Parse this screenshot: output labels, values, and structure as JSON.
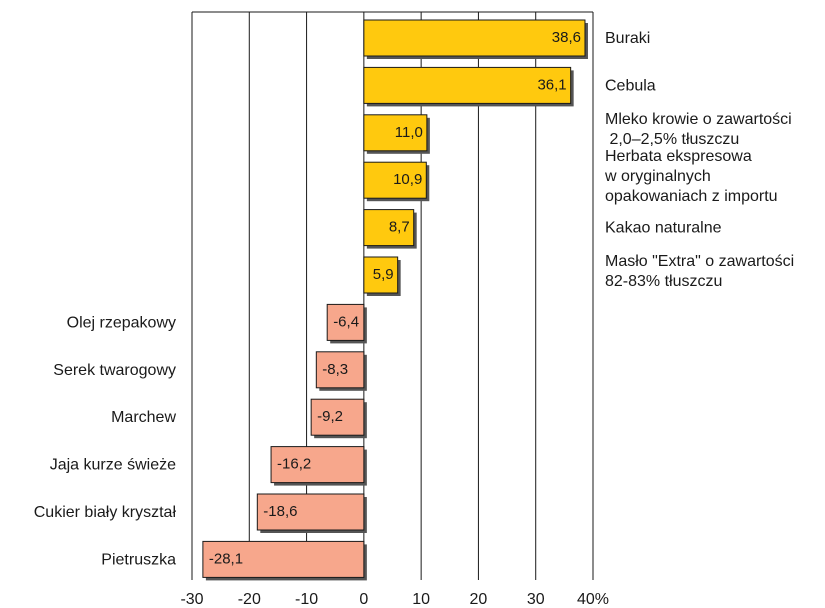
{
  "chart_data": {
    "type": "bar",
    "orientation": "horizontal",
    "xlim": [
      -30,
      40
    ],
    "x_ticks": [
      -30,
      -20,
      -10,
      0,
      10,
      20,
      30,
      40
    ],
    "x_tick_labels": [
      "-30",
      "-20",
      "-10",
      "0",
      "10",
      "20",
      "30",
      "40%"
    ],
    "grid": "vertical",
    "categories": [
      {
        "label_lines": [
          "Buraki"
        ],
        "value": 38.6,
        "value_label": "38,6"
      },
      {
        "label_lines": [
          "Cebula"
        ],
        "value": 36.1,
        "value_label": "36,1"
      },
      {
        "label_lines": [
          "Mleko krowie o zawartości",
          " 2,0–2,5% tłuszczu"
        ],
        "value": 11.0,
        "value_label": "11,0"
      },
      {
        "label_lines": [
          "Herbata ekspresowa",
          "w oryginalnych",
          "opakowaniach z importu"
        ],
        "value": 10.9,
        "value_label": "10,9"
      },
      {
        "label_lines": [
          "Kakao naturalne"
        ],
        "value": 8.7,
        "value_label": "8,7"
      },
      {
        "label_lines": [
          "Masło \"Extra\" o zawartości",
          "82-83% tłuszczu"
        ],
        "value": 5.9,
        "value_label": "5,9"
      },
      {
        "label_lines": [
          "Olej rzepakowy"
        ],
        "value": -6.4,
        "value_label": "-6,4"
      },
      {
        "label_lines": [
          "Serek twarogowy"
        ],
        "value": -8.3,
        "value_label": "-8,3"
      },
      {
        "label_lines": [
          "Marchew"
        ],
        "value": -9.2,
        "value_label": "-9,2"
      },
      {
        "label_lines": [
          "Jaja kurze świeże"
        ],
        "value": -16.2,
        "value_label": "-16,2"
      },
      {
        "label_lines": [
          "Cukier biały kryształ"
        ],
        "value": -18.6,
        "value_label": "-18,6"
      },
      {
        "label_lines": [
          "Pietruszka"
        ],
        "value": -28.1,
        "value_label": "-28,1"
      }
    ],
    "colors": {
      "positive": "#ffc90e",
      "negative": "#f7a78c",
      "bar_stroke": "#1a1a1a",
      "grid": "#1a1a1a"
    }
  }
}
